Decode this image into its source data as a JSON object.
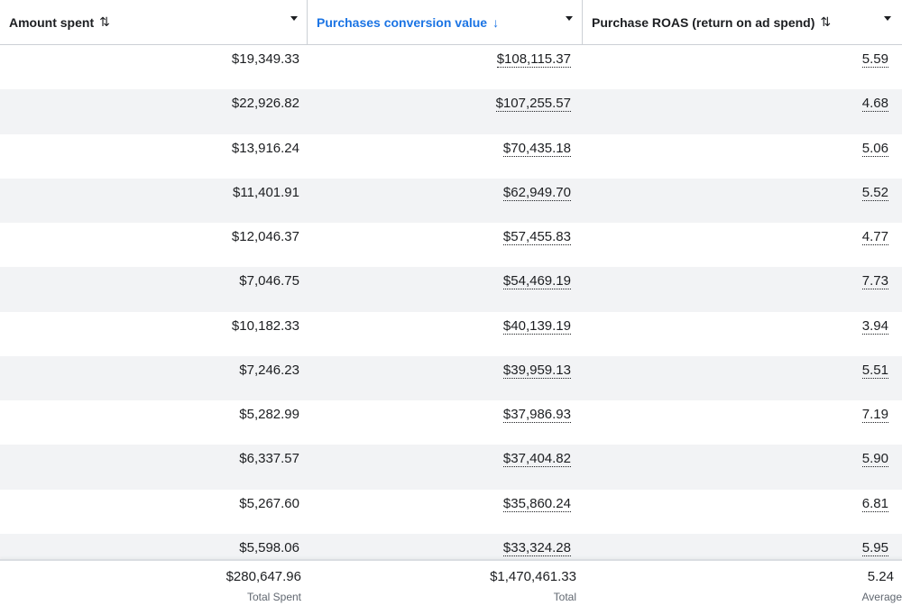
{
  "header": {
    "columns": [
      {
        "label": "Amount spent",
        "sort_glyph": "⇅"
      },
      {
        "label": "Purchases conversion value",
        "sort_glyph": "↓"
      },
      {
        "label": "Purchase ROAS (return on ad spend)",
        "sort_glyph": "⇅"
      }
    ]
  },
  "rows": [
    {
      "amount_spent": "$19,349.33",
      "conversion_value": "$108,115.37",
      "roas": "5.59"
    },
    {
      "amount_spent": "$22,926.82",
      "conversion_value": "$107,255.57",
      "roas": "4.68"
    },
    {
      "amount_spent": "$13,916.24",
      "conversion_value": "$70,435.18",
      "roas": "5.06"
    },
    {
      "amount_spent": "$11,401.91",
      "conversion_value": "$62,949.70",
      "roas": "5.52"
    },
    {
      "amount_spent": "$12,046.37",
      "conversion_value": "$57,455.83",
      "roas": "4.77"
    },
    {
      "amount_spent": "$7,046.75",
      "conversion_value": "$54,469.19",
      "roas": "7.73"
    },
    {
      "amount_spent": "$10,182.33",
      "conversion_value": "$40,139.19",
      "roas": "3.94"
    },
    {
      "amount_spent": "$7,246.23",
      "conversion_value": "$39,959.13",
      "roas": "5.51"
    },
    {
      "amount_spent": "$5,282.99",
      "conversion_value": "$37,986.93",
      "roas": "7.19"
    },
    {
      "amount_spent": "$6,337.57",
      "conversion_value": "$37,404.82",
      "roas": "5.90"
    },
    {
      "amount_spent": "$5,267.60",
      "conversion_value": "$35,860.24",
      "roas": "6.81"
    },
    {
      "amount_spent": "$5,598.06",
      "conversion_value": "$33,324.28",
      "roas": "5.95"
    }
  ],
  "footer": {
    "amount_spent_total": "$280,647.96",
    "amount_spent_label": "Total Spent",
    "conversion_value_total": "$1,470,461.33",
    "conversion_value_label": "Total",
    "roas_average": "5.24",
    "roas_label": "Average"
  },
  "colors": {
    "accent": "#1b74e4",
    "row_alt": "#f2f3f5",
    "border": "#ccd0d5"
  }
}
